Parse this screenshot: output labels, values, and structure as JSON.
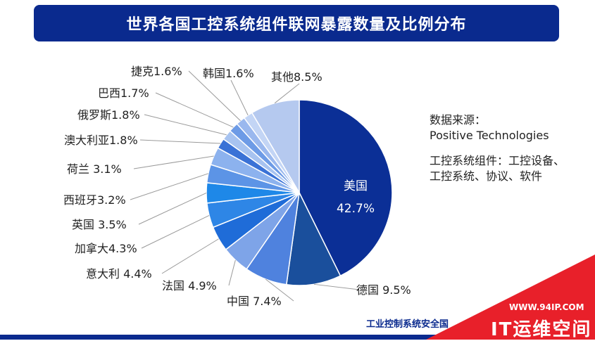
{
  "title": "世界各国工控系统组件联网暴露数量及比例分布",
  "source_label": "数据来源：",
  "source_name": "Positive Technologies",
  "note": "工控系统组件：工控设备、工控系统、协议、软件",
  "footer": "工业控制系统安全国",
  "watermark": {
    "url": "WWW.94IP.COM",
    "name": "IT运维空间"
  },
  "colors": {
    "title_bg": "#0a2a8e",
    "watermark_red": "#e8202a"
  },
  "chart_data": {
    "type": "pie",
    "start": "12 o'clock",
    "direction": "clockwise",
    "slices": [
      {
        "name": "美国",
        "value": 42.7,
        "label": "美国",
        "pct": "42.7%",
        "color": "#0b2f96",
        "inside": true
      },
      {
        "name": "德国",
        "value": 9.5,
        "label": "德国 9.5%",
        "color": "#1a4f9c"
      },
      {
        "name": "中国",
        "value": 7.4,
        "label": "中国 7.4%",
        "color": "#4f82de"
      },
      {
        "name": "法国",
        "value": 4.9,
        "label": "法国 4.9%",
        "color": "#7ea4e8"
      },
      {
        "name": "意大利",
        "value": 4.4,
        "label": "意大利 4.4%",
        "color": "#1f6cd8"
      },
      {
        "name": "加拿大",
        "value": 4.3,
        "label": "加拿大4.3%",
        "color": "#2e86e6"
      },
      {
        "name": "英国",
        "value": 3.5,
        "label": "英国 3.5%",
        "color": "#1e88e8"
      },
      {
        "name": "西班牙",
        "value": 3.2,
        "label": "西班牙3.2%",
        "color": "#5c94e6"
      },
      {
        "name": "荷兰",
        "value": 3.1,
        "label": "荷兰 3.1%",
        "color": "#8cb2ee"
      },
      {
        "name": "澳大利亚",
        "value": 1.8,
        "label": "澳大利亚1.8%",
        "color": "#3a72d6"
      },
      {
        "name": "俄罗斯",
        "value": 1.8,
        "label": "俄罗斯1.8%",
        "color": "#a7c3f0"
      },
      {
        "name": "巴西",
        "value": 1.7,
        "label": "巴西1.7%",
        "color": "#6d9be6"
      },
      {
        "name": "捷克",
        "value": 1.6,
        "label": "捷克1.6%",
        "color": "#9ab8ee"
      },
      {
        "name": "韩国",
        "value": 1.6,
        "label": "韩国1.6%",
        "color": "#c3d5f5"
      },
      {
        "name": "其他",
        "value": 8.5,
        "label": "其他8.5%",
        "color": "#b5c9ef"
      }
    ]
  }
}
